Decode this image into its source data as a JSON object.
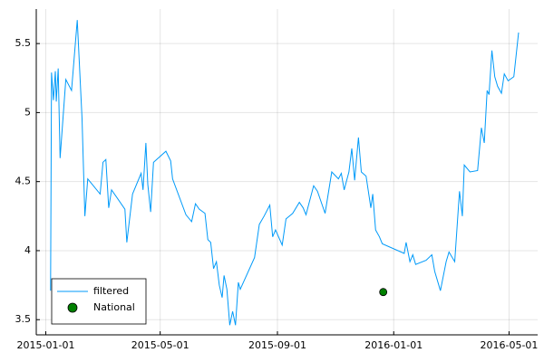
{
  "chart_data": {
    "type": "line",
    "xlim": [
      "2014-12-22",
      "2016-05-31"
    ],
    "xticks": [
      "2015-01-01",
      "2015-05-01",
      "2015-09-01",
      "2016-01-01",
      "2016-05-01"
    ],
    "ylim": [
      3.39,
      5.75
    ],
    "yticks": [
      3.5,
      4.0,
      4.5,
      5.0,
      5.5
    ],
    "grid": true,
    "legend": "bottom-left",
    "series": [
      {
        "name": "filtered",
        "color": "#009af9",
        "mode": "line",
        "x": [
          "2015-01-06",
          "2015-01-07",
          "2015-01-09",
          "2015-01-11",
          "2015-01-12",
          "2015-01-14",
          "2015-01-16",
          "2015-01-22",
          "2015-01-28",
          "2015-02-03",
          "2015-02-08",
          "2015-02-11",
          "2015-02-14",
          "2015-02-27",
          "2015-03-02",
          "2015-03-05",
          "2015-03-08",
          "2015-03-11",
          "2015-03-25",
          "2015-03-27",
          "2015-04-02",
          "2015-04-11",
          "2015-04-13",
          "2015-04-16",
          "2015-04-18",
          "2015-04-21",
          "2015-04-24",
          "2015-05-07",
          "2015-05-12",
          "2015-05-14",
          "2015-05-28",
          "2015-06-03",
          "2015-06-07",
          "2015-06-11",
          "2015-06-17",
          "2015-06-20",
          "2015-06-23",
          "2015-06-26",
          "2015-06-29",
          "2015-07-02",
          "2015-07-05",
          "2015-07-07",
          "2015-07-10",
          "2015-07-13",
          "2015-07-16",
          "2015-07-19",
          "2015-07-22",
          "2015-07-24",
          "2015-08-08",
          "2015-08-13",
          "2015-08-18",
          "2015-08-24",
          "2015-08-27",
          "2015-08-30",
          "2015-09-06",
          "2015-09-10",
          "2015-09-17",
          "2015-09-24",
          "2015-09-28",
          "2015-10-01",
          "2015-10-04",
          "2015-10-09",
          "2015-10-13",
          "2015-10-21",
          "2015-10-28",
          "2015-11-04",
          "2015-11-07",
          "2015-11-10",
          "2015-11-15",
          "2015-11-18",
          "2015-11-21",
          "2015-11-25",
          "2015-11-28",
          "2015-12-03",
          "2015-12-08",
          "2015-12-10",
          "2015-12-13",
          "2015-12-17",
          "2015-12-20",
          "2016-01-12",
          "2016-01-14",
          "2016-01-18",
          "2016-01-21",
          "2016-01-24",
          "2016-02-04",
          "2016-02-10",
          "2016-02-13",
          "2016-02-19",
          "2016-02-25",
          "2016-02-28",
          "2016-03-05",
          "2016-03-10",
          "2016-03-13",
          "2016-03-15",
          "2016-03-21",
          "2016-03-29",
          "2016-04-02",
          "2016-04-05",
          "2016-04-08",
          "2016-04-10",
          "2016-04-13",
          "2016-04-16",
          "2016-04-19",
          "2016-04-23",
          "2016-04-26",
          "2016-04-30",
          "2016-05-06",
          "2016-05-11"
        ],
        "values": [
          3.71,
          5.29,
          5.09,
          5.3,
          5.08,
          5.32,
          4.67,
          5.24,
          5.16,
          5.67,
          4.96,
          4.25,
          4.52,
          4.41,
          4.64,
          4.66,
          4.31,
          4.44,
          4.3,
          4.06,
          4.41,
          4.56,
          4.44,
          4.78,
          4.48,
          4.28,
          4.64,
          4.72,
          4.65,
          4.52,
          4.26,
          4.21,
          4.34,
          4.3,
          4.27,
          4.08,
          4.06,
          3.87,
          3.92,
          3.75,
          3.66,
          3.82,
          3.72,
          3.46,
          3.56,
          3.46,
          3.77,
          3.72,
          3.95,
          4.19,
          4.25,
          4.33,
          4.1,
          4.15,
          4.04,
          4.23,
          4.27,
          4.35,
          4.31,
          4.26,
          4.34,
          4.47,
          4.43,
          4.27,
          4.57,
          4.52,
          4.56,
          4.44,
          4.57,
          4.74,
          4.51,
          4.82,
          4.57,
          4.54,
          4.31,
          4.41,
          4.15,
          4.1,
          4.05,
          3.98,
          4.06,
          3.92,
          3.97,
          3.9,
          3.93,
          3.97,
          3.85,
          3.71,
          3.92,
          3.99,
          3.92,
          4.43,
          4.25,
          4.62,
          4.57,
          4.58,
          4.89,
          4.78,
          5.16,
          5.13,
          5.45,
          5.26,
          5.19,
          5.14,
          5.28,
          5.23,
          5.26,
          5.58
        ]
      },
      {
        "name": "National",
        "color": "#008000",
        "mode": "markers",
        "x": [
          "2015-12-21"
        ],
        "values": [
          3.7
        ]
      }
    ]
  }
}
